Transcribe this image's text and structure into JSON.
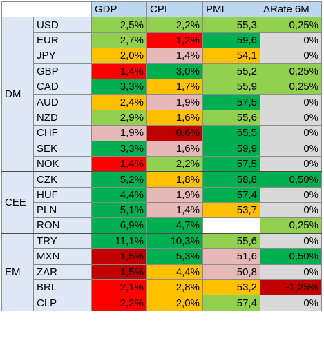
{
  "colors": {
    "header_bg": "#bdd7ee",
    "label_bg": "#dfe9f5",
    "dark_green": "#00b050",
    "light_green": "#92d050",
    "orange": "#ffc000",
    "pink": "#e6b8b7",
    "red": "#ff0000",
    "dark_red": "#c00000",
    "gray": "#d9d9d9",
    "white": "#ffffff"
  },
  "columns": [
    "GDP",
    "CPI",
    "PMI",
    "ΔRate 6M"
  ],
  "groups": [
    {
      "name": "DM",
      "rows": [
        {
          "ccy": "USD",
          "cells": [
            {
              "v": "2,5%",
              "c": "light_green"
            },
            {
              "v": "2,2%",
              "c": "light_green"
            },
            {
              "v": "55,3",
              "c": "light_green"
            },
            {
              "v": "0,25%",
              "c": "light_green"
            }
          ]
        },
        {
          "ccy": "EUR",
          "cells": [
            {
              "v": "2,7%",
              "c": "light_green"
            },
            {
              "v": "1,2%",
              "c": "red"
            },
            {
              "v": "59,6",
              "c": "dark_green"
            },
            {
              "v": "0%",
              "c": "gray"
            }
          ]
        },
        {
          "ccy": "JPY",
          "cells": [
            {
              "v": "2,0%",
              "c": "orange"
            },
            {
              "v": "1,4%",
              "c": "pink"
            },
            {
              "v": "54,1",
              "c": "orange"
            },
            {
              "v": "0%",
              "c": "gray"
            }
          ]
        },
        {
          "ccy": "GBP",
          "cells": [
            {
              "v": "1,4%",
              "c": "red"
            },
            {
              "v": "3,0%",
              "c": "dark_green"
            },
            {
              "v": "55,2",
              "c": "light_green"
            },
            {
              "v": "0,25%",
              "c": "light_green"
            }
          ]
        },
        {
          "ccy": "CAD",
          "cells": [
            {
              "v": "3,3%",
              "c": "dark_green"
            },
            {
              "v": "1,7%",
              "c": "orange"
            },
            {
              "v": "55,9",
              "c": "light_green"
            },
            {
              "v": "0,25%",
              "c": "light_green"
            }
          ]
        },
        {
          "ccy": "AUD",
          "cells": [
            {
              "v": "2,4%",
              "c": "orange"
            },
            {
              "v": "1,9%",
              "c": "pink"
            },
            {
              "v": "57,5",
              "c": "dark_green"
            },
            {
              "v": "0%",
              "c": "gray"
            }
          ]
        },
        {
          "ccy": "NZD",
          "cells": [
            {
              "v": "2,9%",
              "c": "light_green"
            },
            {
              "v": "1,6%",
              "c": "orange"
            },
            {
              "v": "55,6",
              "c": "light_green"
            },
            {
              "v": "0%",
              "c": "gray"
            }
          ]
        },
        {
          "ccy": "CHF",
          "cells": [
            {
              "v": "1,9%",
              "c": "pink"
            },
            {
              "v": "0,6%",
              "c": "dark_red"
            },
            {
              "v": "65,5",
              "c": "dark_green"
            },
            {
              "v": "0%",
              "c": "gray"
            }
          ]
        },
        {
          "ccy": "SEK",
          "cells": [
            {
              "v": "3,3%",
              "c": "dark_green"
            },
            {
              "v": "1,6%",
              "c": "pink"
            },
            {
              "v": "59,9",
              "c": "dark_green"
            },
            {
              "v": "0%",
              "c": "gray"
            }
          ]
        },
        {
          "ccy": "NOK",
          "cells": [
            {
              "v": "1,4%",
              "c": "red"
            },
            {
              "v": "2,2%",
              "c": "light_green"
            },
            {
              "v": "57,5",
              "c": "dark_green"
            },
            {
              "v": "0%",
              "c": "gray"
            }
          ]
        }
      ]
    },
    {
      "name": "CEE",
      "rows": [
        {
          "ccy": "CZK",
          "cells": [
            {
              "v": "5,2%",
              "c": "dark_green"
            },
            {
              "v": "1,8%",
              "c": "orange"
            },
            {
              "v": "58,8",
              "c": "dark_green"
            },
            {
              "v": "0,50%",
              "c": "dark_green"
            }
          ]
        },
        {
          "ccy": "HUF",
          "cells": [
            {
              "v": "4,4%",
              "c": "dark_green"
            },
            {
              "v": "1,9%",
              "c": "pink"
            },
            {
              "v": "57,4",
              "c": "dark_green"
            },
            {
              "v": "0%",
              "c": "gray"
            }
          ]
        },
        {
          "ccy": "PLN",
          "cells": [
            {
              "v": "5,1%",
              "c": "dark_green"
            },
            {
              "v": "1,4%",
              "c": "pink"
            },
            {
              "v": "53,7",
              "c": "orange"
            },
            {
              "v": "0%",
              "c": "gray"
            }
          ]
        },
        {
          "ccy": "RON",
          "cells": [
            {
              "v": "6,9%",
              "c": "dark_green"
            },
            {
              "v": "4,7%",
              "c": "dark_green"
            },
            {
              "v": "",
              "c": "white"
            },
            {
              "v": "0,25%",
              "c": "light_green"
            }
          ]
        }
      ]
    },
    {
      "name": "EM",
      "rows": [
        {
          "ccy": "TRY",
          "cells": [
            {
              "v": "11,1%",
              "c": "dark_green"
            },
            {
              "v": "10,3%",
              "c": "dark_green"
            },
            {
              "v": "55,6",
              "c": "light_green"
            },
            {
              "v": "0%",
              "c": "gray"
            }
          ]
        },
        {
          "ccy": "MXN",
          "cells": [
            {
              "v": "1,5%",
              "c": "dark_red"
            },
            {
              "v": "5,3%",
              "c": "dark_green"
            },
            {
              "v": "51,6",
              "c": "pink"
            },
            {
              "v": "0,50%",
              "c": "dark_green"
            }
          ]
        },
        {
          "ccy": "ZAR",
          "cells": [
            {
              "v": "1,5%",
              "c": "dark_red"
            },
            {
              "v": "4,4%",
              "c": "orange"
            },
            {
              "v": "50,8",
              "c": "pink"
            },
            {
              "v": "0%",
              "c": "gray"
            }
          ]
        },
        {
          "ccy": "BRL",
          "cells": [
            {
              "v": "2,1%",
              "c": "red"
            },
            {
              "v": "2,8%",
              "c": "orange"
            },
            {
              "v": "53,2",
              "c": "orange"
            },
            {
              "v": "-1,25%",
              "c": "dark_red"
            }
          ]
        },
        {
          "ccy": "CLP",
          "cells": [
            {
              "v": "2,2%",
              "c": "red"
            },
            {
              "v": "2,0%",
              "c": "orange"
            },
            {
              "v": "57,4",
              "c": "light_green"
            },
            {
              "v": "0%",
              "c": "gray"
            }
          ]
        }
      ]
    }
  ]
}
